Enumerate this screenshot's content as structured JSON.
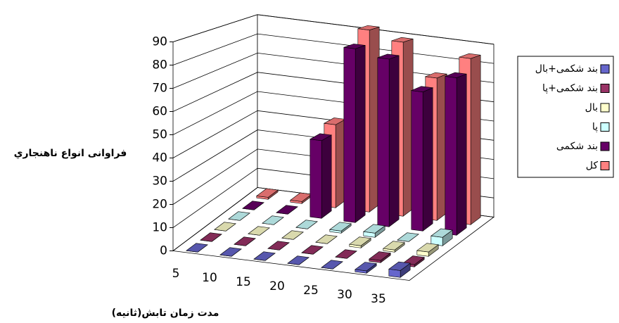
{
  "chart_data": {
    "type": "bar3d",
    "categories": [
      "5",
      "10",
      "15",
      "20",
      "25",
      "30",
      "35"
    ],
    "series": [
      {
        "name": "بند شکمی+بال",
        "color": "#6666cc",
        "values": [
          0,
          0,
          0,
          0,
          0,
          1,
          3
        ]
      },
      {
        "name": "بند شکمی+پا",
        "color": "#993366",
        "values": [
          0,
          0,
          0,
          0,
          0,
          1,
          1
        ]
      },
      {
        "name": "بال",
        "color": "#ffffcc",
        "values": [
          0,
          0,
          0,
          0,
          1,
          1,
          2
        ]
      },
      {
        "name": "پا",
        "color": "#ccffff",
        "values": [
          0,
          0,
          0,
          1,
          2,
          0,
          4
        ]
      },
      {
        "name": "بند شکمی",
        "color": "#660066",
        "values": [
          0,
          0,
          38,
          85,
          82,
          68,
          77
        ]
      },
      {
        "name": "کل",
        "color": "#ff8080",
        "values": [
          1,
          1,
          42,
          92,
          88,
          72,
          84
        ]
      }
    ],
    "ylim": [
      0,
      90
    ],
    "yticks": [
      0,
      10,
      20,
      30,
      40,
      50,
      60,
      70,
      80,
      90
    ],
    "grid": true,
    "y_label": "فراوانی انواع ناهنجاري",
    "x_label": "مدت زمان تابش(ثانيه)",
    "legend": "right"
  }
}
